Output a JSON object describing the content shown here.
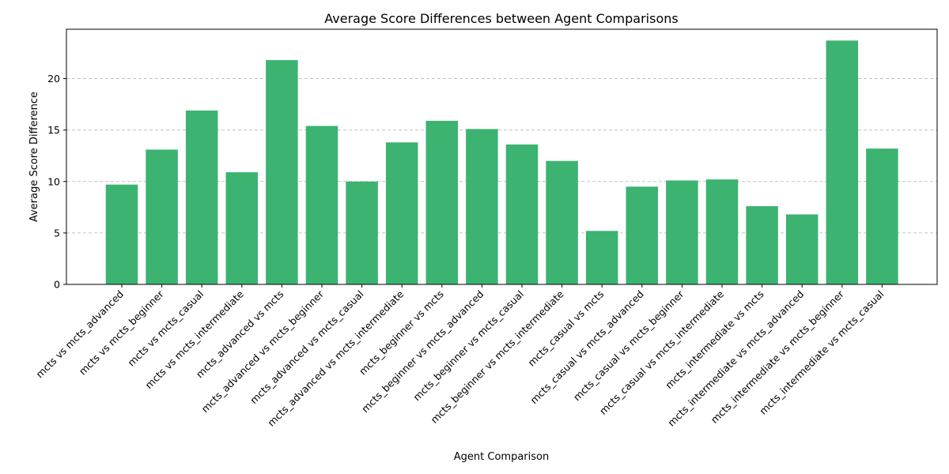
{
  "chart_data": {
    "type": "bar",
    "title": "Average Score Differences between Agent Comparisons",
    "xlabel": "Agent Comparison",
    "ylabel": "Average Score Difference",
    "ylim": [
      0,
      24.8
    ],
    "yticks": [
      0,
      5,
      10,
      15,
      20
    ],
    "grid": "y",
    "bar_color": "#3cb371",
    "categories": [
      "mcts vs mcts_advanced",
      "mcts vs mcts_beginner",
      "mcts vs mcts_casual",
      "mcts vs mcts_intermediate",
      "mcts_advanced vs mcts",
      "mcts_advanced vs mcts_beginner",
      "mcts_advanced vs mcts_casual",
      "mcts_advanced vs mcts_intermediate",
      "mcts_beginner vs mcts",
      "mcts_beginner vs mcts_advanced",
      "mcts_beginner vs mcts_casual",
      "mcts_beginner vs mcts_intermediate",
      "mcts_casual vs mcts",
      "mcts_casual vs mcts_advanced",
      "mcts_casual vs mcts_beginner",
      "mcts_casual vs mcts_intermediate",
      "mcts_intermediate vs mcts",
      "mcts_intermediate vs mcts_advanced",
      "mcts_intermediate vs mcts_beginner",
      "mcts_intermediate vs mcts_casual"
    ],
    "values": [
      9.7,
      13.1,
      16.9,
      10.9,
      21.8,
      15.4,
      10.0,
      13.8,
      15.9,
      15.1,
      13.6,
      12.0,
      5.2,
      9.5,
      10.1,
      10.2,
      7.6,
      6.8,
      23.7,
      13.2
    ]
  }
}
